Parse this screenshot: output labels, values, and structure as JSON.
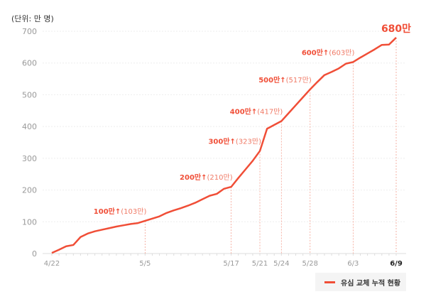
{
  "unit_label": "(단위: 만 명)",
  "chart_data": {
    "type": "line",
    "title": "",
    "xlabel": "",
    "ylabel": "(단위: 만 명)",
    "ylim": [
      0,
      700
    ],
    "yticks": [
      0,
      100,
      200,
      300,
      400,
      500,
      600,
      700
    ],
    "grid": true,
    "legend_position": "bottom-right",
    "color": "#f04e37",
    "x_start": "4/22",
    "x_end": "6/9",
    "xtick_labels": [
      {
        "label": "4/22",
        "day": 0
      },
      {
        "label": "5/5",
        "day": 13
      },
      {
        "label": "5/17",
        "day": 25
      },
      {
        "label": "5/21",
        "day": 29
      },
      {
        "label": "5/24",
        "day": 32
      },
      {
        "label": "5/28",
        "day": 36
      },
      {
        "label": "6/3",
        "day": 42
      },
      {
        "label": "6/9",
        "day": 48
      }
    ],
    "series": [
      {
        "name": "유심 교체 누적 현황",
        "values": [
          2,
          12,
          23,
          27,
          52,
          63,
          70,
          75,
          80,
          85,
          89,
          93,
          96,
          103,
          110,
          117,
          128,
          136,
          143,
          151,
          160,
          171,
          182,
          188,
          204,
          210,
          238,
          265,
          292,
          323,
          393,
          405,
          417,
          442,
          467,
          492,
          517,
          540,
          562,
          572,
          583,
          598,
          603,
          617,
          630,
          643,
          657,
          658,
          680
        ]
      }
    ],
    "annotations": [
      {
        "day": 13,
        "value": 103,
        "bold": "100만↑",
        "light": "(103만)"
      },
      {
        "day": 25,
        "value": 210,
        "bold": "200만↑",
        "light": "(210만)"
      },
      {
        "day": 29,
        "value": 323,
        "bold": "300만↑",
        "light": "(323만)"
      },
      {
        "day": 32,
        "value": 417,
        "bold": "400만↑",
        "light": "(417만)"
      },
      {
        "day": 36,
        "value": 517,
        "bold": "500만↑",
        "light": "(517만)"
      },
      {
        "day": 42,
        "value": 603,
        "bold": "600만↑",
        "light": "(603만)"
      },
      {
        "day": 48,
        "value": 680,
        "bold": "680만",
        "light": ""
      }
    ]
  }
}
